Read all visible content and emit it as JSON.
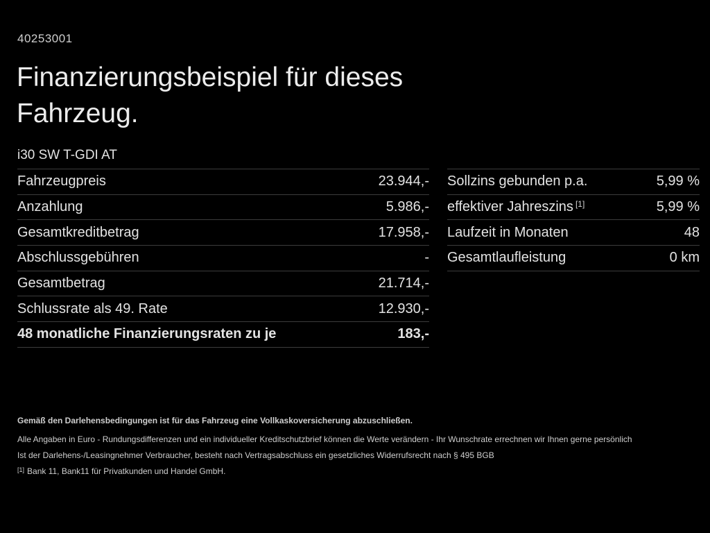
{
  "page": {
    "ref_number": "40253001",
    "title_line1": "Finanzierungsbeispiel für dieses",
    "title_line2": "Fahrzeug.",
    "vehicle": "i30 SW T-GDI AT"
  },
  "left_table": {
    "rows": [
      {
        "label": "Fahrzeugpreis",
        "value": "23.944,-"
      },
      {
        "label": "Anzahlung",
        "value": "5.986,-"
      },
      {
        "label": "Gesamtkreditbetrag",
        "value": "17.958,-"
      },
      {
        "label": "Abschlussgebühren",
        "value": "-"
      },
      {
        "label": "Gesamtbetrag",
        "value": "21.714,-"
      },
      {
        "label": "Schlussrate als 49. Rate",
        "value": "12.930,-"
      },
      {
        "label": "48 monatliche Finanzierungsraten zu je",
        "value": "183,-"
      }
    ]
  },
  "right_table": {
    "rows": [
      {
        "label": "Sollzins gebunden p.a.",
        "sup": "",
        "value": "5,99 %"
      },
      {
        "label": "effektiver Jahreszins",
        "sup": "[1]",
        "value": "5,99 %"
      },
      {
        "label": "Laufzeit in Monaten",
        "sup": "",
        "value": "48"
      },
      {
        "label": "Gesamtlaufleistung",
        "sup": "",
        "value": "0 km"
      }
    ]
  },
  "fineprint": {
    "bold_line": "Gemäß den Darlehensbedingungen ist für das Fahrzeug eine Vollkaskoversicherung abzuschließen.",
    "line2": "Alle Angaben in Euro - Rundungsdifferenzen und ein individueller Kreditschutzbrief können die Werte verändern - Ihr Wunschrate errechnen wir Ihnen gerne persönlich",
    "line3": "Ist der Darlehens-/Leasingnehmer Verbraucher, besteht nach Vertragsabschluss ein gesetzliches Widerrufsrecht nach § 495 BGB",
    "footnote_marker": "[1]",
    "footnote_text": "Bank 11, Bank11 für Privatkunden und Handel GmbH."
  },
  "colors": {
    "background": "#000000",
    "text": "#e3e3e3",
    "divider": "#3c3c3c"
  }
}
